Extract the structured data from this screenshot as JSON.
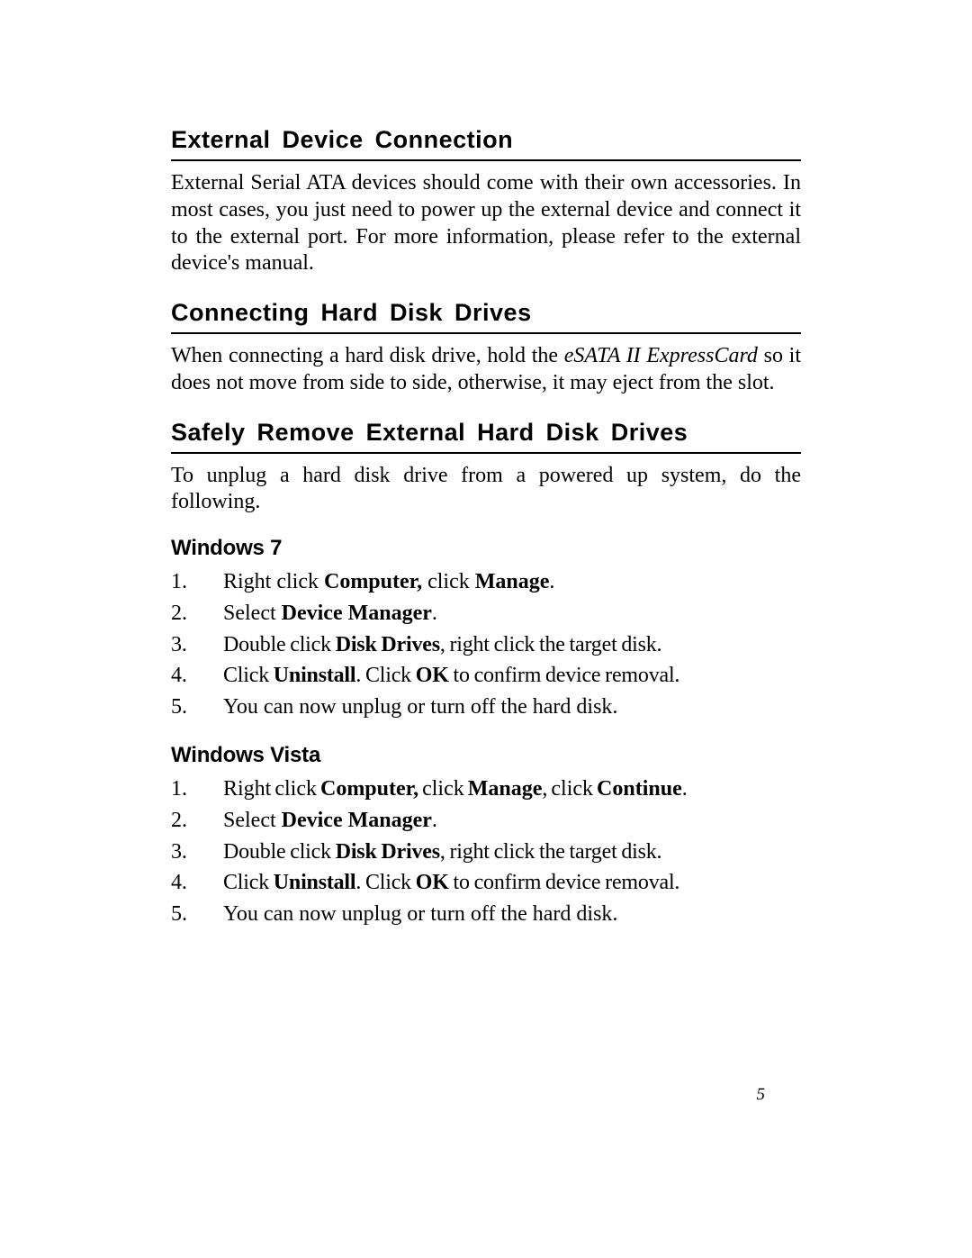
{
  "colors": {
    "bg": "#ffffff",
    "text": "#000000",
    "rule": "#000000"
  },
  "typography": {
    "heading_font": "Helvetica/Arial sans-serif",
    "body_font": "Palatino serif",
    "heading_size_pt": 20,
    "subheading_size_pt": 18,
    "body_size_pt": 18
  },
  "page_number": "5",
  "sections": {
    "external": {
      "title": "External  Device  Connection",
      "para": "External Serial ATA devices should come with their own accessories.  In most cases, you just need to power up the external device and connect it to the external port.  For more information, please refer to the external device's manual."
    },
    "connecting": {
      "title": "Connecting  Hard  Disk  Drives",
      "prefix": "When connecting a hard disk drive, hold the ",
      "italic": "eSATA II ExpressCard",
      "suffix": " so it does not move from side to side, otherwise, it may eject from the slot."
    },
    "safely": {
      "title": "Safely  Remove  External  Hard  Disk  Drives",
      "para": "To unplug a hard disk drive from a powered up system, do the following."
    },
    "win7": {
      "title": "Windows 7",
      "items": {
        "s1": {
          "a": "Right click ",
          "b1": "Computer,",
          "c": " click ",
          "b2": "Manage",
          "d": "."
        },
        "s2": {
          "a": "Select ",
          "b1": "Device Manager",
          "c": "."
        },
        "s3": {
          "a": "Double click ",
          "b1": "Disk Drives",
          "c": ", right click the target disk."
        },
        "s4": {
          "a": "Click ",
          "b1": "Uninstall",
          "c": ".  Click ",
          "b2": "OK",
          "d": " to confirm device removal."
        },
        "s5": {
          "a": "You can now unplug or turn off the hard disk."
        }
      }
    },
    "vista": {
      "title": "Windows Vista",
      "items": {
        "s1": {
          "a": "Right click ",
          "b1": "Computer,",
          "c": " click ",
          "b2": "Manage",
          "d": ", click ",
          "b3": "Continue",
          "e": "."
        },
        "s2": {
          "a": "Select ",
          "b1": "Device Manager",
          "c": "."
        },
        "s3": {
          "a": "Double click ",
          "b1": "Disk Drives",
          "c": ", right click the target disk."
        },
        "s4": {
          "a": "Click ",
          "b1": "Uninstall",
          "c": ".  Click ",
          "b2": "OK",
          "d": " to confirm device removal."
        },
        "s5": {
          "a": "You can now unplug or turn off the hard disk."
        }
      }
    }
  }
}
